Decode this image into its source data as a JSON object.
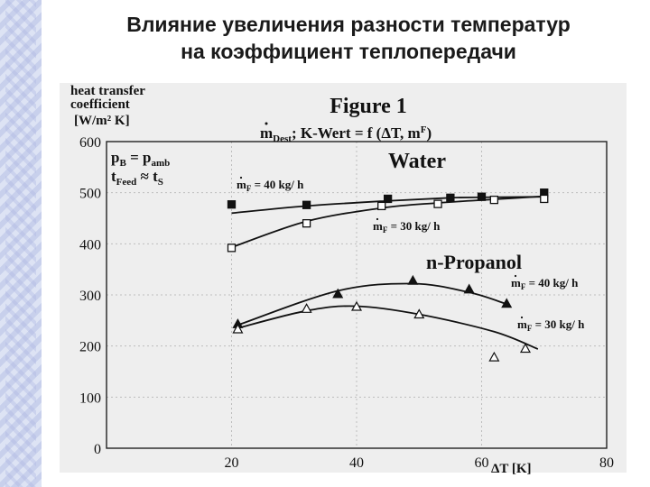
{
  "slide_title_line1": "Влияние увеличения разности температур",
  "slide_title_line2": "на коэффициент теплопередачи",
  "chart_data": {
    "type": "line",
    "figure_label": "Figure 1",
    "subtitle": {
      "m_dest": "m",
      "m_dest_sub": "Dest",
      "k_wert": "; K-Wert = f (ΔT, m",
      "k_wert_sup": "F",
      "k_wert_end": ")"
    },
    "ylabel_lines": [
      "heat transfer",
      "coefficient",
      "[W/m² K]"
    ],
    "xlabel": "ΔT  [K]",
    "xlim": [
      0,
      80
    ],
    "ylim": [
      0,
      600
    ],
    "x_ticks": [
      20,
      40,
      60,
      80
    ],
    "y_ticks": [
      0,
      100,
      200,
      300,
      400,
      500,
      600
    ],
    "conditions": {
      "line1_a": "p",
      "line1_a_sub": "B",
      "line1_b": " = p",
      "line1_b_sub": "amb",
      "line2_a": "t",
      "line2_a_sub": "Feed",
      "line2_b": " ≈ t",
      "line2_b_sub": "S"
    },
    "group_labels": {
      "water": "Water",
      "propanol": "n-Propanol"
    },
    "series": [
      {
        "group": "Water",
        "flow_label": "m",
        "flow_label_sub": "F",
        "flow_label_rest": " = 40 kg/ h",
        "marker": "square-filled",
        "points": [
          [
            20,
            477
          ],
          [
            32,
            476
          ],
          [
            45,
            488
          ],
          [
            55,
            490
          ],
          [
            60,
            492
          ],
          [
            70,
            500
          ]
        ],
        "curve": [
          [
            20,
            460
          ],
          [
            32,
            474
          ],
          [
            45,
            484
          ],
          [
            55,
            490
          ],
          [
            60,
            491
          ],
          [
            70,
            492
          ]
        ]
      },
      {
        "group": "Water",
        "flow_label": "m",
        "flow_label_sub": "F",
        "flow_label_rest": " = 30 kg/ h",
        "marker": "square-open",
        "points": [
          [
            20,
            392
          ],
          [
            32,
            440
          ],
          [
            44,
            474
          ],
          [
            53,
            478
          ],
          [
            62,
            486
          ],
          [
            70,
            488
          ]
        ],
        "curve": [
          [
            20,
            393
          ],
          [
            32,
            444
          ],
          [
            44,
            470
          ],
          [
            53,
            480
          ],
          [
            62,
            487
          ],
          [
            70,
            493
          ]
        ]
      },
      {
        "group": "n-Propanol",
        "flow_label": "m",
        "flow_label_sub": "F",
        "flow_label_rest": " = 40 kg/ h",
        "marker": "triangle-filled",
        "points": [
          [
            21,
            243
          ],
          [
            37,
            302
          ],
          [
            49,
            328
          ],
          [
            58,
            311
          ],
          [
            64,
            283
          ]
        ],
        "curve": [
          [
            21,
            241
          ],
          [
            37,
            308
          ],
          [
            49,
            322
          ],
          [
            58,
            305
          ],
          [
            64,
            282
          ]
        ]
      },
      {
        "group": "n-Propanol",
        "flow_label": "m",
        "flow_label_sub": "F",
        "flow_label_rest": " = 30 kg/ h",
        "marker": "triangle-open",
        "points": [
          [
            21,
            233
          ],
          [
            32,
            273
          ],
          [
            40,
            277
          ],
          [
            50,
            262
          ],
          [
            62,
            178
          ],
          [
            67,
            195
          ]
        ],
        "curve": [
          [
            21,
            235
          ],
          [
            32,
            269
          ],
          [
            40,
            278
          ],
          [
            50,
            262
          ],
          [
            62,
            228
          ],
          [
            69,
            194
          ]
        ]
      }
    ],
    "grid": true
  }
}
